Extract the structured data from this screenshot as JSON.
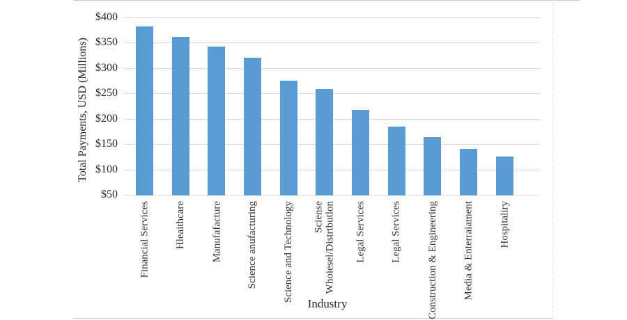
{
  "chart_data": {
    "type": "bar",
    "title": "",
    "xlabel": "Industry",
    "ylabel": "Total Payments, USD (Millions)",
    "categories": [
      "Financial Services",
      "Hleaithcare",
      "Manufafacture",
      "Science anufacturing",
      "Science and Technology",
      "Sciense\nWhoiesel/Distrtbutlon",
      "Legal Services",
      "Legal Services",
      "Construction & Engineering",
      "Media & Enterraiament",
      "Hospitaliry"
    ],
    "values": [
      382,
      362,
      342,
      321,
      275,
      258,
      218,
      185,
      164,
      140,
      126
    ],
    "ylim": [
      50,
      400
    ],
    "ytick_step": 50,
    "ytick_labels": [
      "$50",
      "$100",
      "$150",
      "$200",
      "$250",
      "$300",
      "$350",
      "$400"
    ],
    "grid": true,
    "legend": "none",
    "bar_color": "#5b9bd5",
    "gridline_color": "#d9d9d9",
    "text_color": "#2e2e2e"
  }
}
